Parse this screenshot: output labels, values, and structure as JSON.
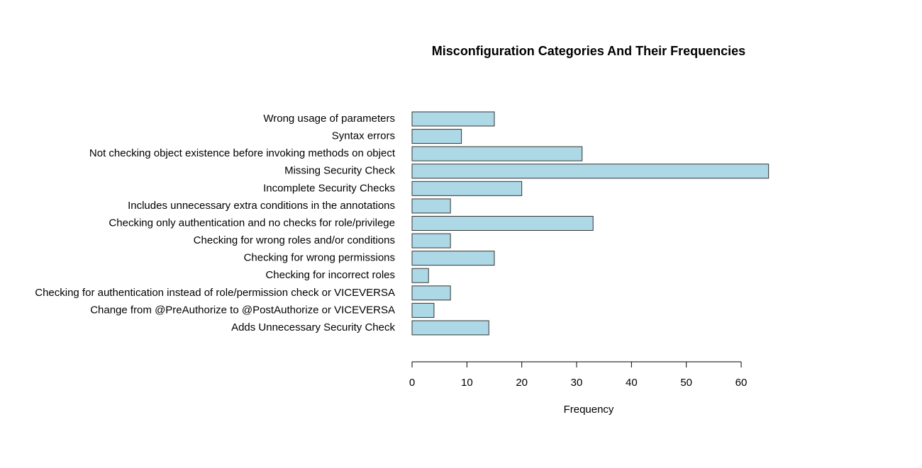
{
  "chart_data": {
    "type": "barh",
    "title": "Misconfiguration Categories And Their Frequencies",
    "x_label": "Frequency",
    "categories": [
      "Wrong usage of parameters",
      "Syntax errors",
      "Not checking object existence before invoking methods on object",
      "Missing Security Check",
      "Incomplete Security Checks",
      "Includes unnecessary extra conditions in the annotations",
      "Checking only authentication and no checks for role/privilege",
      "Checking for wrong roles and/or conditions",
      "Checking for wrong permissions",
      "Checking for incorrect roles",
      "Checking for authentication instead of role/permission check or VICEVERSA",
      "Change from @PreAuthorize to @PostAuthorize or VICEVERSA",
      "Adds Unnecessary Security Check",
      null
    ],
    "values": [
      15,
      9,
      31,
      65,
      20,
      7,
      33,
      7,
      15,
      3,
      7,
      4,
      14,
      0
    ],
    "color": "#add8e6",
    "xlim": [
      0,
      65
    ],
    "xticks": [
      0,
      10,
      20,
      30,
      40,
      50,
      60
    ],
    "grid": false
  }
}
